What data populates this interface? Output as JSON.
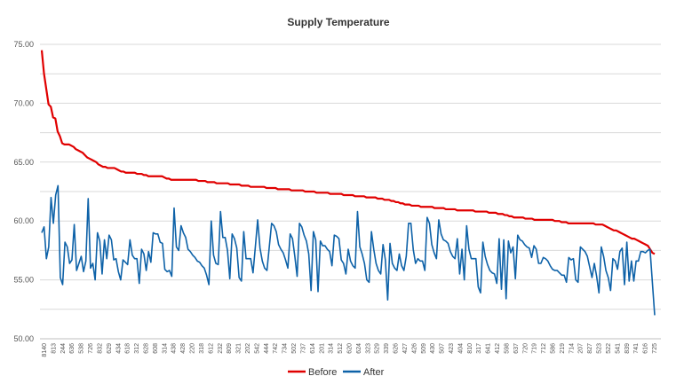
{
  "chart_data": {
    "type": "line",
    "title": "Supply Temperature",
    "xlabel": "",
    "ylabel": "",
    "ylim": [
      50,
      75
    ],
    "yticks": [
      "50.00",
      "55.00",
      "60.00",
      "65.00",
      "70.00",
      "75.00"
    ],
    "grid": true,
    "legend": "bottom",
    "x_tick_labels": [
      "8140",
      "813",
      "244",
      "636",
      "538",
      "726",
      "832",
      "629",
      "434",
      "618",
      "312",
      "628",
      "608",
      "314",
      "438",
      "428",
      "220",
      "318",
      "612",
      "232",
      "809",
      "321",
      "202",
      "542",
      "444",
      "742",
      "734",
      "502",
      "737",
      "614",
      "201",
      "314",
      "512",
      "620",
      "624",
      "323",
      "529",
      "339",
      "626",
      "427",
      "426",
      "509",
      "430",
      "507",
      "423",
      "404",
      "810",
      "317",
      "641",
      "412",
      "598",
      "637",
      "720",
      "719",
      "712",
      "586",
      "219",
      "714",
      "207",
      "827",
      "523",
      "522",
      "541",
      "839",
      "741",
      "616",
      "725"
    ],
    "series": [
      {
        "name": "Before",
        "color": "#e00000",
        "values": [
          74.5,
          72.5,
          71.2,
          69.9,
          69.7,
          68.8,
          68.7,
          67.6,
          67.2,
          66.6,
          66.5,
          66.5,
          66.5,
          66.4,
          66.3,
          66.1,
          66.0,
          65.9,
          65.8,
          65.6,
          65.4,
          65.3,
          65.2,
          65.1,
          65.0,
          64.8,
          64.7,
          64.6,
          64.6,
          64.5,
          64.5,
          64.5,
          64.5,
          64.4,
          64.3,
          64.2,
          64.2,
          64.1,
          64.1,
          64.1,
          64.1,
          64.1,
          64.0,
          64.0,
          64.0,
          63.9,
          63.9,
          63.8,
          63.8,
          63.8,
          63.8,
          63.8,
          63.8,
          63.8,
          63.7,
          63.6,
          63.6,
          63.5,
          63.5,
          63.5,
          63.5,
          63.5,
          63.5,
          63.5,
          63.5,
          63.5,
          63.5,
          63.5,
          63.5,
          63.4,
          63.4,
          63.4,
          63.4,
          63.3,
          63.3,
          63.3,
          63.3,
          63.2,
          63.2,
          63.2,
          63.2,
          63.2,
          63.2,
          63.1,
          63.1,
          63.1,
          63.1,
          63.1,
          63.0,
          63.0,
          63.0,
          63.0,
          62.9,
          62.9,
          62.9,
          62.9,
          62.9,
          62.9,
          62.9,
          62.8,
          62.8,
          62.8,
          62.8,
          62.8,
          62.7,
          62.7,
          62.7,
          62.7,
          62.7,
          62.7,
          62.6,
          62.6,
          62.6,
          62.6,
          62.6,
          62.6,
          62.5,
          62.5,
          62.5,
          62.5,
          62.5,
          62.4,
          62.4,
          62.4,
          62.4,
          62.4,
          62.4,
          62.3,
          62.3,
          62.3,
          62.3,
          62.3,
          62.3,
          62.2,
          62.2,
          62.2,
          62.2,
          62.2,
          62.1,
          62.1,
          62.1,
          62.1,
          62.1,
          62.0,
          62.0,
          62.0,
          62.0,
          62.0,
          61.9,
          61.9,
          61.9,
          61.8,
          61.8,
          61.8,
          61.7,
          61.7,
          61.6,
          61.6,
          61.5,
          61.5,
          61.4,
          61.4,
          61.4,
          61.3,
          61.3,
          61.3,
          61.3,
          61.2,
          61.2,
          61.2,
          61.2,
          61.2,
          61.2,
          61.1,
          61.1,
          61.1,
          61.1,
          61.1,
          61.0,
          61.0,
          61.0,
          61.0,
          61.0,
          60.9,
          60.9,
          60.9,
          60.9,
          60.9,
          60.9,
          60.9,
          60.9,
          60.8,
          60.8,
          60.8,
          60.8,
          60.8,
          60.8,
          60.7,
          60.7,
          60.7,
          60.7,
          60.6,
          60.6,
          60.6,
          60.5,
          60.5,
          60.4,
          60.4,
          60.3,
          60.3,
          60.3,
          60.3,
          60.3,
          60.2,
          60.2,
          60.2,
          60.2,
          60.1,
          60.1,
          60.1,
          60.1,
          60.1,
          60.1,
          60.1,
          60.1,
          60.1,
          60.0,
          60.0,
          60.0,
          59.9,
          59.9,
          59.9,
          59.8,
          59.8,
          59.8,
          59.8,
          59.8,
          59.8,
          59.8,
          59.8,
          59.8,
          59.8,
          59.8,
          59.8,
          59.7,
          59.7,
          59.7,
          59.7,
          59.6,
          59.5,
          59.4,
          59.3,
          59.2,
          59.2,
          59.1,
          59.0,
          58.9,
          58.8,
          58.7,
          58.6,
          58.5,
          58.5,
          58.4,
          58.3,
          58.2,
          58.1,
          58.0,
          57.9,
          57.6,
          57.3,
          57.2
        ]
      },
      {
        "name": "After",
        "color": "#0e62a8",
        "values": [
          59.0,
          59.5,
          56.8,
          57.8,
          62.0,
          59.8,
          62.2,
          63.0,
          55.2,
          54.6,
          58.2,
          57.8,
          56.4,
          56.7,
          59.7,
          55.8,
          56.4,
          57.0,
          55.7,
          56.6,
          61.9,
          56.0,
          56.4,
          55.0,
          59.0,
          58.3,
          55.5,
          58.4,
          56.8,
          58.8,
          58.4,
          56.7,
          56.8,
          55.7,
          55.0,
          56.7,
          56.5,
          56.3,
          58.4,
          57.1,
          56.8,
          56.8,
          54.7,
          57.6,
          57.2,
          55.8,
          57.4,
          56.5,
          59.0,
          58.9,
          58.9,
          58.2,
          58.1,
          55.9,
          55.7,
          55.8,
          55.3,
          61.1,
          57.8,
          57.5,
          59.6,
          59.0,
          58.6,
          57.6,
          57.4,
          57.1,
          56.9,
          56.6,
          56.5,
          56.2,
          56.0,
          55.4,
          54.6,
          60.0,
          57.1,
          56.4,
          56.3,
          60.8,
          58.6,
          58.6,
          57.5,
          55.1,
          58.9,
          58.5,
          57.7,
          55.2,
          54.9,
          59.1,
          56.8,
          56.8,
          56.8,
          55.6,
          57.8,
          60.1,
          57.7,
          56.6,
          56.0,
          55.8,
          57.8,
          59.8,
          59.6,
          59.1,
          58.0,
          57.6,
          57.3,
          56.7,
          56.0,
          58.9,
          58.5,
          57.0,
          55.3,
          59.8,
          59.5,
          58.8,
          58.3,
          57.2,
          54.1,
          59.1,
          58.4,
          54.0,
          58.3,
          57.9,
          57.9,
          57.6,
          57.4,
          56.2,
          58.8,
          58.7,
          58.5,
          56.7,
          56.4,
          55.5,
          57.6,
          56.6,
          56.2,
          56.0,
          60.8,
          57.8,
          57.2,
          56.4,
          55.0,
          54.8,
          59.1,
          57.6,
          56.4,
          55.8,
          55.5,
          58.0,
          56.7,
          53.3,
          58.1,
          56.4,
          56.0,
          55.8,
          57.2,
          56.2,
          55.8,
          57.0,
          59.8,
          59.8,
          57.6,
          56.4,
          56.8,
          56.6,
          56.6,
          55.8,
          60.3,
          59.8,
          58.0,
          57.3,
          56.8,
          60.1,
          58.9,
          58.4,
          58.3,
          58.1,
          57.4,
          57.0,
          56.8,
          58.5,
          55.5,
          57.6,
          55.0,
          59.6,
          57.6,
          56.8,
          56.8,
          56.8,
          54.4,
          53.9,
          58.2,
          57.0,
          56.3,
          55.8,
          55.6,
          55.5,
          54.7,
          58.5,
          54.2,
          58.4,
          53.4,
          58.3,
          57.3,
          57.8,
          55.1,
          58.8,
          58.4,
          58.3,
          58.0,
          57.8,
          57.7,
          56.9,
          57.9,
          57.6,
          56.4,
          56.4,
          56.9,
          56.8,
          56.6,
          56.2,
          55.9,
          55.8,
          55.8,
          55.6,
          55.4,
          55.4,
          54.8,
          56.9,
          56.7,
          56.8,
          55.0,
          54.8,
          57.8,
          57.6,
          57.4,
          57.0,
          56.1,
          55.2,
          56.4,
          55.3,
          53.9,
          57.8,
          57.0,
          55.8,
          55.2,
          54.1,
          56.8,
          56.6,
          55.9,
          57.4,
          57.7,
          54.6,
          58.2,
          54.9,
          56.6,
          54.9,
          56.6,
          56.6,
          57.4,
          57.4,
          57.3,
          57.5,
          57.6,
          54.8,
          52.0
        ]
      }
    ]
  }
}
